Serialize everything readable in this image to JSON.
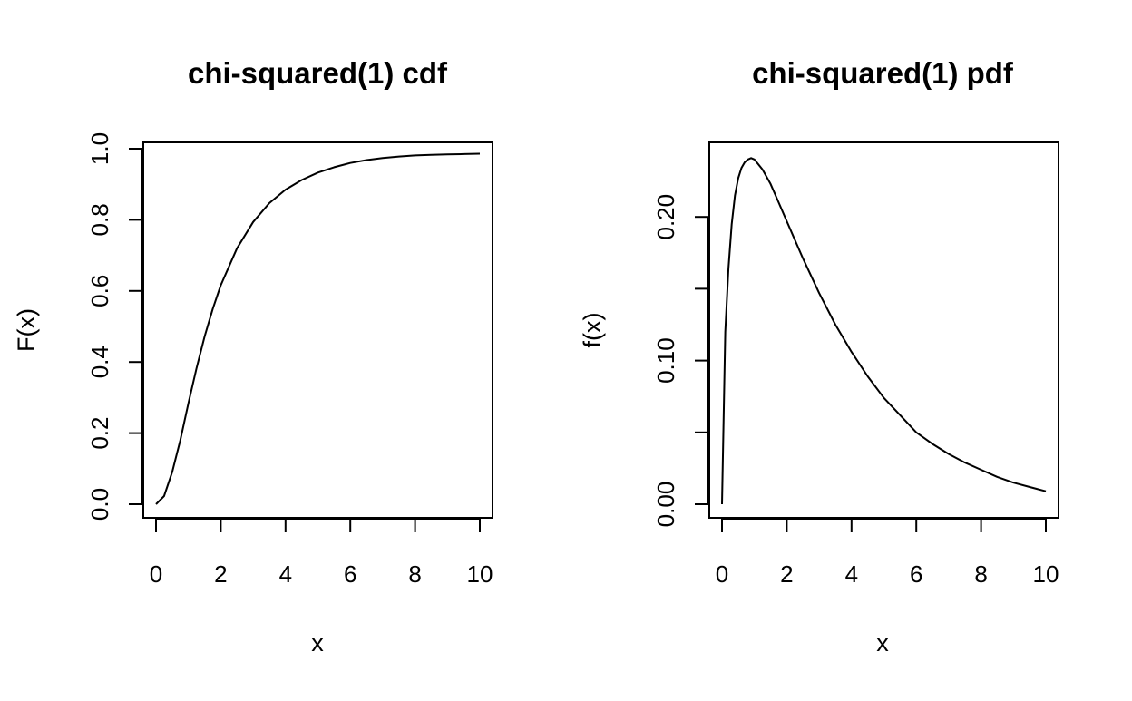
{
  "chart_data": [
    {
      "type": "line",
      "title": "chi-squared(1) cdf",
      "xlabel": "x",
      "ylabel": "F(x)",
      "xlim": [
        0,
        10
      ],
      "ylim": [
        0,
        1
      ],
      "x_ticks": [
        0,
        2,
        4,
        6,
        8,
        10
      ],
      "y_ticks": [
        0.0,
        0.2,
        0.4,
        0.6,
        0.8,
        1.0
      ],
      "x_tick_labels": [
        "0",
        "2",
        "4",
        "6",
        "8",
        "10"
      ],
      "y_tick_labels": [
        "0.0",
        "0.2",
        "0.4",
        "0.6",
        "0.8",
        "1.0"
      ],
      "grid": false,
      "color": "#000000",
      "series": [
        {
          "x": [
            0,
            0.25,
            0.5,
            0.75,
            1,
            1.25,
            1.5,
            1.75,
            2,
            2.5,
            3,
            3.5,
            4,
            4.5,
            5,
            5.5,
            6,
            6.5,
            7,
            7.5,
            8,
            8.5,
            9,
            9.5,
            10
          ],
          "y": [
            0,
            0.023,
            0.09,
            0.18,
            0.284,
            0.382,
            0.472,
            0.549,
            0.616,
            0.72,
            0.794,
            0.847,
            0.885,
            0.912,
            0.933,
            0.948,
            0.96,
            0.968,
            0.974,
            0.978,
            0.981,
            0.983,
            0.984,
            0.985,
            0.986
          ]
        }
      ]
    },
    {
      "type": "line",
      "title": "chi-squared(1) pdf",
      "xlabel": "x",
      "ylabel": "f(x)",
      "xlim": [
        0,
        10
      ],
      "ylim": [
        0,
        0.25
      ],
      "x_ticks": [
        0,
        2,
        4,
        6,
        8,
        10
      ],
      "y_ticks": [
        0.0,
        0.05,
        0.1,
        0.15,
        0.2
      ],
      "x_tick_labels": [
        "0",
        "2",
        "4",
        "6",
        "8",
        "10"
      ],
      "y_tick_labels": [
        "0.00",
        "",
        "0.10",
        "",
        "0.20"
      ],
      "grid": false,
      "color": "#000000",
      "series": [
        {
          "x": [
            0,
            0.1,
            0.2,
            0.3,
            0.4,
            0.5,
            0.6,
            0.7,
            0.8,
            0.9,
            1,
            1.25,
            1.5,
            1.75,
            2,
            2.5,
            3,
            3.5,
            4,
            4.5,
            5,
            5.5,
            6,
            6.5,
            7,
            7.5,
            8,
            8.5,
            9,
            9.5,
            10
          ],
          "y": [
            0,
            0.12,
            0.164,
            0.195,
            0.215,
            0.227,
            0.234,
            0.238,
            0.24,
            0.241,
            0.24,
            0.233,
            0.223,
            0.21,
            0.197,
            0.171,
            0.147,
            0.125,
            0.106,
            0.089,
            0.074,
            0.062,
            0.05,
            0.042,
            0.035,
            0.029,
            0.024,
            0.019,
            0.015,
            0.012,
            0.009
          ]
        }
      ]
    }
  ]
}
